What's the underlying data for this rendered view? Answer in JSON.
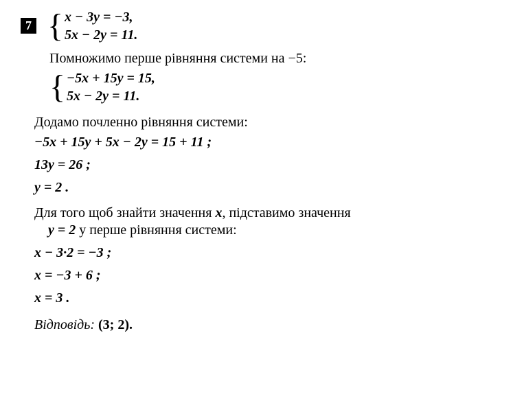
{
  "problem_number": "7",
  "system1": {
    "eq1": "x − 3y = −3,",
    "eq2": "5x − 2y = 11."
  },
  "text1": "Помножимо перше рівняння системи на −5:",
  "system2": {
    "eq1": "−5x + 15y = 15,",
    "eq2": "5x − 2y = 11."
  },
  "text2": "Додамо почленно рівняння системи:",
  "step1": "−5x + 15y + 5x − 2y = 15 + 11 ;",
  "step2": "13y = 26 ;",
  "step3": "y = 2 .",
  "text3a": "Для того щоб знайти значення ",
  "text3var": "x",
  "text3b": ", підставимо значення",
  "text4a_var": "y = 2",
  "text4b": "  у перше рівняння системи:",
  "step4": "x − 3·2 = −3 ;",
  "step5": "x = −3 + 6 ;",
  "step6": "x = 3 .",
  "answer_label": "Відповідь:",
  "answer_value": "(3; 2)."
}
